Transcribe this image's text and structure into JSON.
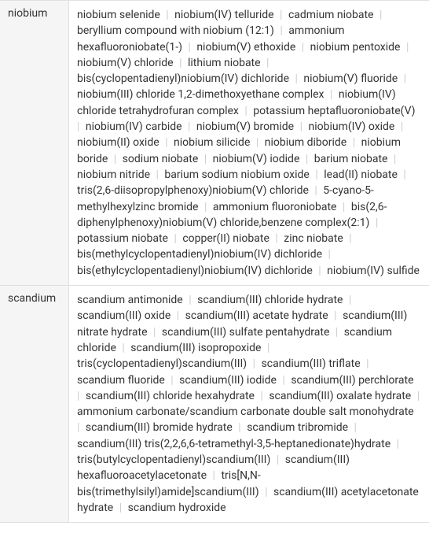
{
  "rows": [
    {
      "label": "niobium",
      "compounds": [
        "niobium selenide",
        "niobium(IV) telluride",
        "cadmium niobate",
        "beryllium compound with niobium (12:1)",
        "ammonium hexafluoroniobate(1-)",
        "niobium(V) ethoxide",
        "niobium pentoxide",
        "niobium(V) chloride",
        "lithium niobate",
        "bis(cyclopentadienyl)niobium(IV) dichloride",
        "niobium(V) fluoride",
        "niobium(III) chloride 1,2-dimethoxyethane complex",
        "niobium(IV) chloride tetrahydrofuran complex",
        "potassium heptafluoroniobate(V)",
        "niobium(IV) carbide",
        "niobium(V) bromide",
        "niobium(IV) oxide",
        "niobium(II) oxide",
        "niobium silicide",
        "niobium diboride",
        "niobium boride",
        "sodium niobate",
        "niobium(V) iodide",
        "barium niobate",
        "niobium nitride",
        "barium sodium niobium oxide",
        "lead(II) niobate",
        "tris(2,6-diisopropylphenoxy)niobium(V) chloride",
        "5-cyano-5-methylhexylzinc bromide",
        "ammonium fluoroniobate",
        "bis(2,6-diphenylphenoxy)niobium(V) chloride,benzene complex(2:1)",
        "potassium niobate",
        "copper(II) niobate",
        "zinc niobate",
        "bis(methylcyclopentadienyl)niobium(IV) dichloride",
        "bis(ethylcyclopentadienyl)niobium(IV) dichloride",
        "niobium(IV) sulfide"
      ]
    },
    {
      "label": "scandium",
      "compounds": [
        "scandium antimonide",
        "scandium(III) chloride hydrate",
        "scandium(III) oxide",
        "scandium(III) acetate hydrate",
        "scandium(III) nitrate hydrate",
        "scandium(III) sulfate pentahydrate",
        "scandium chloride",
        "scandium(III) isopropoxide",
        "tris(cyclopentadienyl)scandium(III)",
        "scandium(III) triflate",
        "scandium fluoride",
        "scandium(III) iodide",
        "scandium(III) perchlorate",
        "scandium(III) chloride hexahydrate",
        "scandium(III) oxalate hydrate",
        "ammonium carbonate/scandium carbonate double salt monohydrate",
        "scandium(III) bromide hydrate",
        "scandium tribromide",
        "scandium(III) tris(2,2,6,6-tetramethyl-3,5-heptanedionate)hydrate",
        "tris(butylcyclopentadienyl)scandium(III)",
        "scandium(III) hexafluoroacetylacetonate",
        "tris[N,N-bis(trimethylsilyl)amide]scandium(III)",
        "scandium(III) acetylacetonate hydrate",
        "scandium hydroxide"
      ]
    }
  ],
  "colors": {
    "background": "#ffffff",
    "label_bg": "#f5f5f5",
    "border": "#e0e0e0",
    "text": "#333333",
    "separator": "#cccccc"
  },
  "fonts": {
    "size": 14,
    "line_height": 1.45
  }
}
